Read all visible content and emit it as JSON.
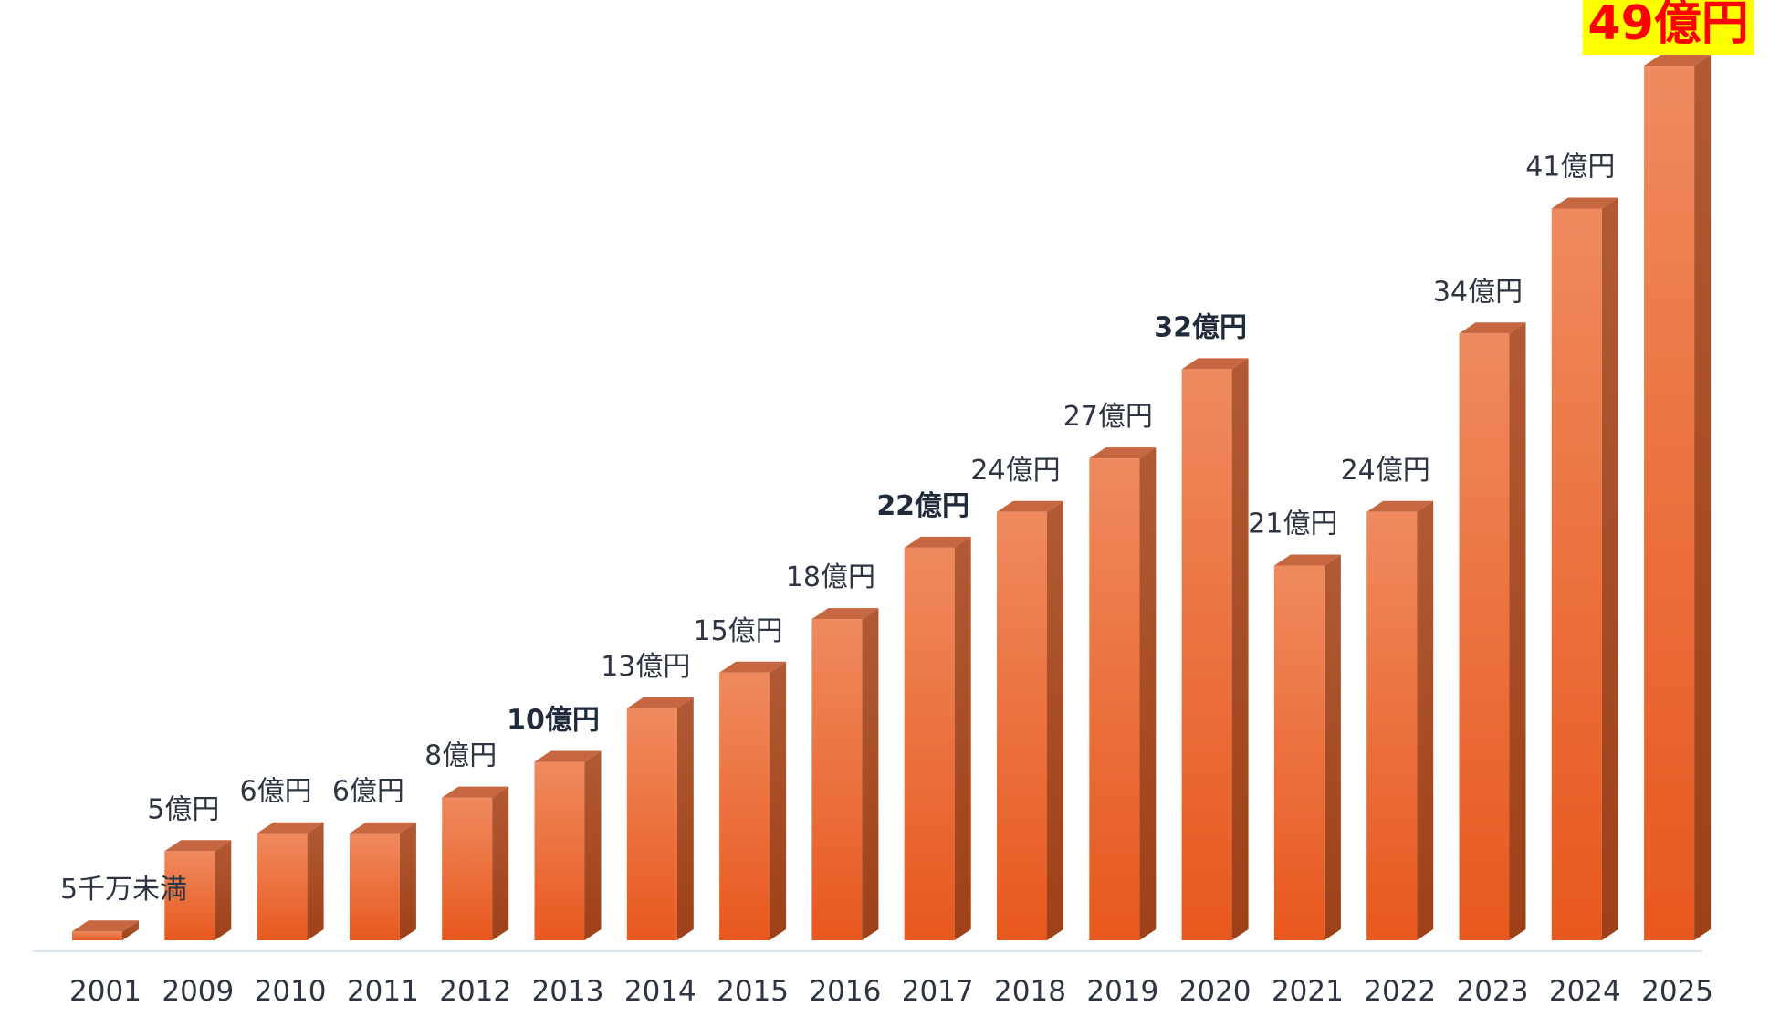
{
  "chart_data": {
    "type": "bar",
    "title": "",
    "xlabel": "",
    "ylabel": "",
    "ylim": [
      0,
      50
    ],
    "grid": false,
    "legend": "none",
    "categories": [
      "2001",
      "2009",
      "2010",
      "2011",
      "2012",
      "2013",
      "2014",
      "2015",
      "2016",
      "2017",
      "2018",
      "2019",
      "2020",
      "2021",
      "2022",
      "2023",
      "2024",
      "2025"
    ],
    "values": [
      0.5,
      5,
      6,
      6,
      8,
      10,
      13,
      15,
      18,
      22,
      24,
      27,
      32,
      21,
      24,
      34,
      41,
      49
    ],
    "data_labels": [
      "5千万未満",
      "5億円",
      "6億円",
      "6億円",
      "8億円",
      "10億円",
      "13億円",
      "15億円",
      "18億円",
      "22億円",
      "24億円",
      "27億円",
      "32億円",
      "21億円",
      "24億円",
      "34億円",
      "41億円",
      "49億円"
    ],
    "emphasized_labels": [
      "2013",
      "2017",
      "2020"
    ],
    "highlighted_label": "2025",
    "colors": {
      "bar_top": "#ef8a5e",
      "bar_bottom": "#e8581e",
      "bar_side": "#a84c24",
      "bar_cap": "#c66741",
      "axis_line": "#d9e3ee",
      "highlight_bg": "#ffff00",
      "highlight_text": "#ff0000",
      "label_text": "#2e3441"
    }
  }
}
